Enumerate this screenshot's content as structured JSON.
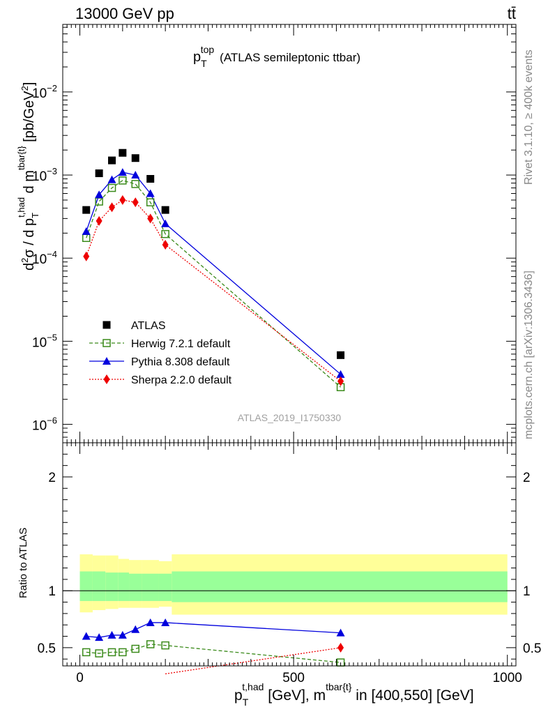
{
  "header": {
    "left": "13000 GeV pp",
    "right": "tt̄"
  },
  "side": {
    "rivet": "Rivet 3.1.10, ≥ 400k events",
    "mcplots": "mcplots.cern.ch [arXiv:1306.3436]"
  },
  "watermark": "ATLAS_2019_I1750330",
  "colors": {
    "atlas": "#000000",
    "herwig": "#3a8a1a",
    "pythia": "#0000dd",
    "sherpa": "#ee0000",
    "band_stat": "#99ff99",
    "band_total": "#ffff99"
  },
  "chart_data": [
    {
      "type": "scatter",
      "panel": "main",
      "title": {
        "main": "p",
        "sup": "top",
        "sub": "T",
        "rest": "(ATLAS semileptonic ttbar)"
      },
      "ylabel": "d²σ / d p_T^{t,had} d m^{tbar{t}} [pb/GeV²]",
      "yscale": "log",
      "xlim": [
        -40,
        1020
      ],
      "ylim": [
        6e-07,
        0.065
      ],
      "ytick_labels": [
        {
          "value": 1e-06,
          "base": "10",
          "exp": "−6"
        },
        {
          "value": 1e-05,
          "base": "10",
          "exp": "−5"
        },
        {
          "value": 0.0001,
          "base": "10",
          "exp": "−4"
        },
        {
          "value": 0.001,
          "base": "10",
          "exp": "−3"
        },
        {
          "value": 0.01,
          "base": "10",
          "exp": "−2"
        }
      ],
      "series": [
        {
          "name": "ATLAS",
          "marker": "square-filled",
          "x": [
            15,
            45,
            75,
            100,
            130,
            165,
            200,
            610
          ],
          "y": [
            0.00038,
            0.00105,
            0.0015,
            0.00185,
            0.0016,
            0.0009,
            0.00038,
            6.8e-06
          ]
        },
        {
          "name": "Herwig 7.2.1 default",
          "marker": "square-open",
          "line": "dashed",
          "x": [
            15,
            45,
            75,
            100,
            130,
            165,
            200,
            610
          ],
          "y": [
            0.000175,
            0.00048,
            0.0007,
            0.00086,
            0.00078,
            0.00047,
            0.000195,
            2.8e-06
          ]
        },
        {
          "name": "Pythia 8.308 default",
          "marker": "triangle",
          "line": "solid",
          "x": [
            15,
            45,
            75,
            100,
            130,
            165,
            200,
            610
          ],
          "y": [
            0.00021,
            0.00058,
            0.00088,
            0.00108,
            0.001,
            0.0006,
            0.00026,
            4e-06
          ]
        },
        {
          "name": "Sherpa 2.2.0 default",
          "marker": "diamond",
          "line": "dotted",
          "x": [
            15,
            45,
            75,
            100,
            130,
            165,
            200,
            610
          ],
          "y": [
            0.000105,
            0.00028,
            0.00041,
            0.0005,
            0.00047,
            0.0003,
            0.000145,
            3.3e-06
          ]
        }
      ]
    },
    {
      "type": "line",
      "panel": "ratio",
      "ylabel": "Ratio to ATLAS",
      "xlabel": {
        "p": "p",
        "sup1": "t,had",
        "sub1": "T",
        "mid": " [GeV], m",
        "sup2": "tbar{t}",
        "rest": " in [400,550] [GeV]"
      },
      "xlim": [
        -40,
        1020
      ],
      "ylim": [
        0.34,
        2.3
      ],
      "xtick_labels": [
        "0",
        "500",
        "1000"
      ],
      "xtick_values": [
        0,
        500,
        1000
      ],
      "ytick_labels": [
        "0.5",
        "1",
        "2"
      ],
      "ytick_values": [
        0.5,
        1,
        2
      ],
      "bands": {
        "edges": [
          0,
          30,
          60,
          90,
          115,
          145,
          185,
          215,
          1000
        ],
        "stat_lo": [
          0.91,
          0.91,
          0.91,
          0.91,
          0.91,
          0.91,
          0.91,
          0.9
        ],
        "stat_hi": [
          1.17,
          1.17,
          1.16,
          1.16,
          1.15,
          1.15,
          1.15,
          1.17
        ],
        "total_lo": [
          0.81,
          0.83,
          0.84,
          0.85,
          0.85,
          0.85,
          0.86,
          0.79
        ],
        "total_hi": [
          1.32,
          1.31,
          1.31,
          1.28,
          1.27,
          1.27,
          1.26,
          1.32
        ]
      },
      "series": [
        {
          "name": "Herwig 7.2.1 default",
          "x": [
            15,
            45,
            75,
            100,
            130,
            165,
            200,
            610
          ],
          "y": [
            0.46,
            0.45,
            0.46,
            0.46,
            0.49,
            0.53,
            0.52,
            0.37
          ]
        },
        {
          "name": "Pythia 8.308 default",
          "x": [
            15,
            45,
            75,
            100,
            130,
            165,
            200,
            610
          ],
          "y": [
            0.6,
            0.59,
            0.61,
            0.61,
            0.66,
            0.72,
            0.72,
            0.63
          ]
        },
        {
          "name": "Sherpa 2.2.0 default",
          "x": [
            200,
            610
          ],
          "y": [
            0.27,
            0.5
          ],
          "draw_markers_from": 1
        }
      ]
    }
  ]
}
